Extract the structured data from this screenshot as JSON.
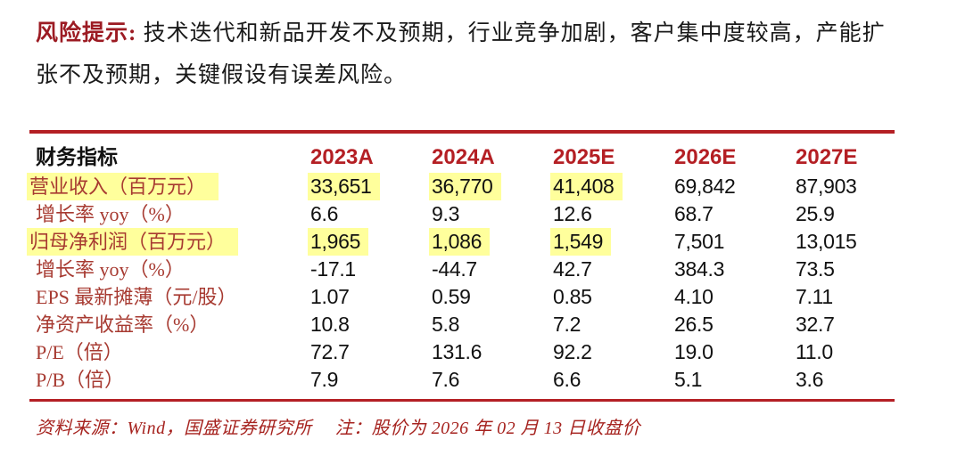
{
  "risk": {
    "label": "风险提示:",
    "text": "技术迭代和新品开发不及预期，行业竞争加剧，客户集中度较高，产能扩张不及预期，关键假设有误差风险。"
  },
  "table": {
    "header": {
      "label": "财务指标",
      "years": [
        "2023A",
        "2024A",
        "2025E",
        "2026E",
        "2027E"
      ]
    },
    "rows": [
      {
        "label": "营业收入（百万元）",
        "values": [
          "33,651",
          "36,770",
          "41,408",
          "69,842",
          "87,903"
        ],
        "highlighted": true
      },
      {
        "label": "增长率 yoy（%）",
        "values": [
          "6.6",
          "9.3",
          "12.6",
          "68.7",
          "25.9"
        ],
        "highlighted": false
      },
      {
        "label": "归母净利润（百万元）",
        "values": [
          "1,965",
          "1,086",
          "1,549",
          "7,501",
          "13,015"
        ],
        "highlighted": true
      },
      {
        "label": "增长率 yoy（%）",
        "values": [
          "-17.1",
          "-44.7",
          "42.7",
          "384.3",
          "73.5"
        ],
        "highlighted": false
      },
      {
        "label": "EPS 最新摊薄（元/股）",
        "values": [
          "1.07",
          "0.59",
          "0.85",
          "4.10",
          "7.11"
        ],
        "highlighted": false
      },
      {
        "label": "净资产收益率（%）",
        "values": [
          "10.8",
          "5.8",
          "7.2",
          "26.5",
          "32.7"
        ],
        "highlighted": false
      },
      {
        "label": "P/E（倍）",
        "values": [
          "72.7",
          "131.6",
          "92.2",
          "19.0",
          "11.0"
        ],
        "highlighted": false
      },
      {
        "label": "P/B（倍）",
        "values": [
          "7.9",
          "7.6",
          "6.6",
          "5.1",
          "3.6"
        ],
        "highlighted": false
      }
    ],
    "highlighted_columns_count": 3
  },
  "footer": {
    "source": "资料来源：Wind，国盛证券研究所",
    "note": "注：股价为 2026 年 02 月 13 日收盘价"
  },
  "colors": {
    "rule_and_year_red": "#b41f24",
    "risk_title_red": "#9c1b23",
    "row_label_red": "#a73a31",
    "footer_red": "#a6231f",
    "highlight_yellow": "#ffff9c",
    "text_black": "#1a1a1a"
  }
}
